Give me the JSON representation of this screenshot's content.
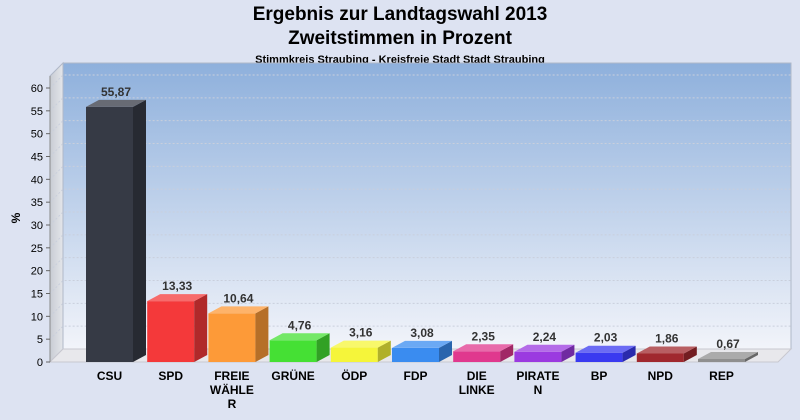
{
  "chart_data": {
    "type": "bar",
    "title": "Ergebnis zur Landtagswahl 2013",
    "subtitle": "Zweitstimmen in Prozent",
    "subsubtitle": "Stimmkreis Straubing - Kreisfreie Stadt Stadt Straubing",
    "ylabel": "%",
    "xlabel": "",
    "ylim": [
      0,
      60
    ],
    "yticks": [
      0,
      5,
      10,
      15,
      20,
      25,
      30,
      35,
      40,
      45,
      50,
      55,
      60
    ],
    "grid": true,
    "categories": [
      [
        "CSU"
      ],
      [
        "SPD"
      ],
      [
        "FREIE",
        "WÄHLE",
        "R"
      ],
      [
        "GRÜNE"
      ],
      [
        "ÖDP"
      ],
      [
        "FDP"
      ],
      [
        "DIE",
        "LINKE"
      ],
      [
        "PIRATE",
        "N"
      ],
      [
        "BP"
      ],
      [
        "NPD"
      ],
      [
        "REP"
      ]
    ],
    "values": [
      55.87,
      13.33,
      10.64,
      4.76,
      3.16,
      3.08,
      2.35,
      2.24,
      2.03,
      1.86,
      0.67
    ],
    "value_labels": [
      "55,87",
      "13,33",
      "10,64",
      "4,76",
      "3,16",
      "3,08",
      "2,35",
      "2,24",
      "2,03",
      "1,86",
      "0,67"
    ],
    "colors": [
      "#363a45",
      "#f4393a",
      "#fd9a38",
      "#45e034",
      "#f5f53a",
      "#3a8cf0",
      "#e0388e",
      "#9b3ae0",
      "#3a3af0",
      "#a0282e",
      "#8f8f8f"
    ]
  }
}
